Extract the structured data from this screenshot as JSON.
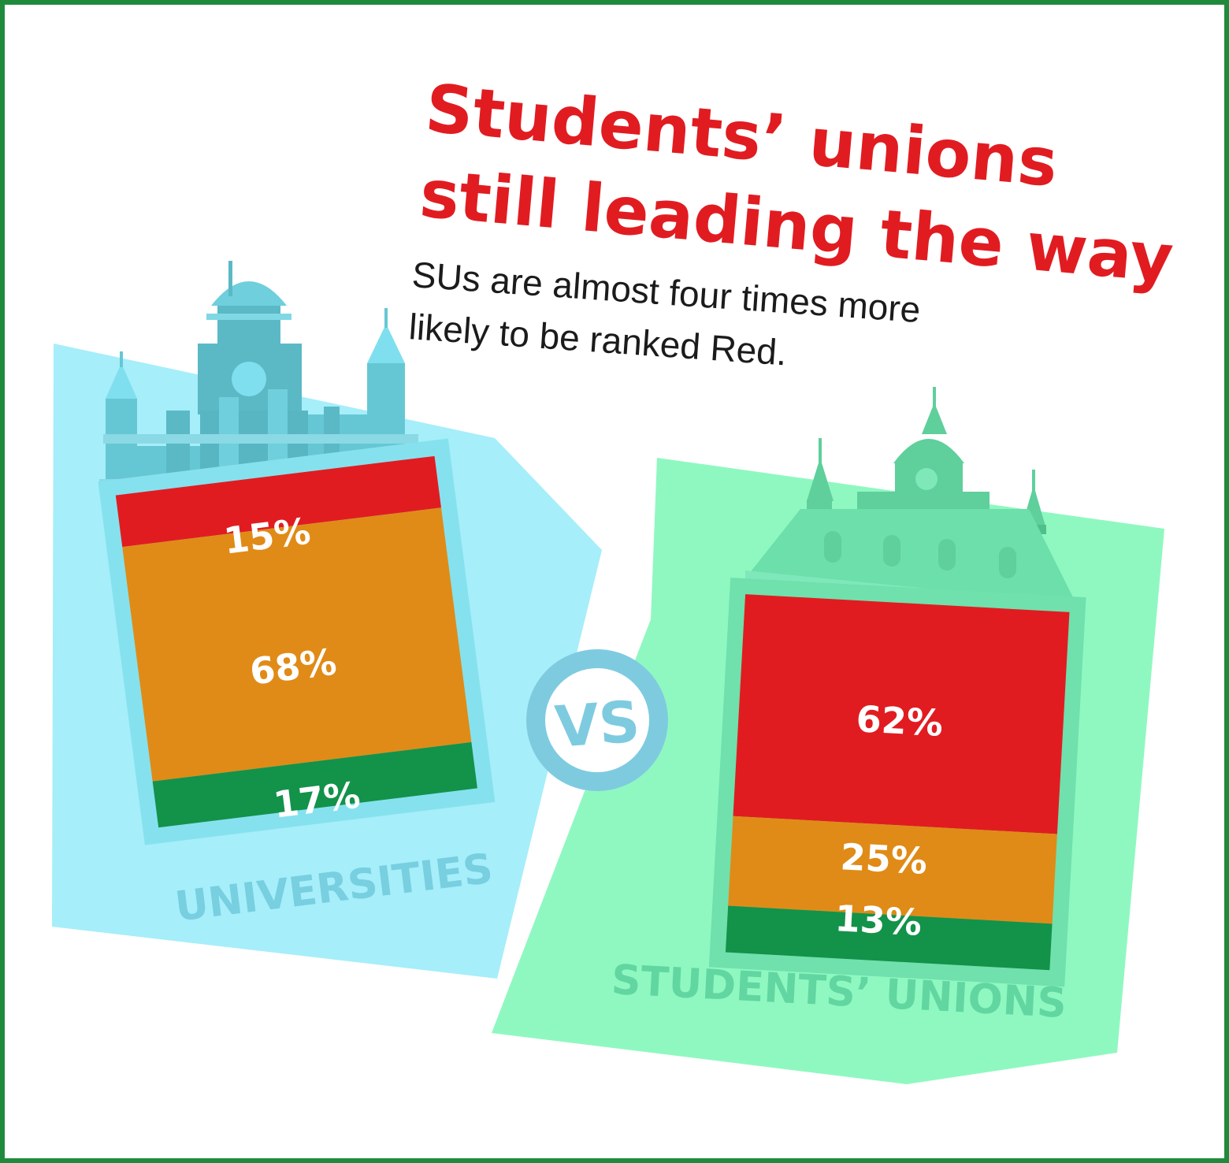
{
  "headline": {
    "line1": "Students’ unions",
    "line2": "still leading the way"
  },
  "subtitle": {
    "line1": "SUs are almost four times more",
    "line2": "likely to be ranked Red."
  },
  "vs_label": "VS",
  "colors": {
    "red": "#e11c21",
    "orange": "#e08b17",
    "green": "#13924a",
    "universities_panel": "#a6eefa",
    "universities_building": "#66c7d4",
    "unions_panel": "#8ff8c1",
    "unions_building": "#6cdfaa",
    "vs_ring": "#7ecbe0"
  },
  "chart_data": [
    {
      "type": "bar",
      "stacked": true,
      "category": "UNIVERSITIES",
      "segments": [
        {
          "label": "15%",
          "value": 15,
          "color": "red"
        },
        {
          "label": "68%",
          "value": 68,
          "color": "orange"
        },
        {
          "label": "17%",
          "value": 17,
          "color": "green"
        }
      ]
    },
    {
      "type": "bar",
      "stacked": true,
      "category": "STUDENTS’ UNIONS",
      "segments": [
        {
          "label": "62%",
          "value": 62,
          "color": "red"
        },
        {
          "label": "25%",
          "value": 25,
          "color": "orange"
        },
        {
          "label": "13%",
          "value": 13,
          "color": "green"
        }
      ]
    }
  ]
}
